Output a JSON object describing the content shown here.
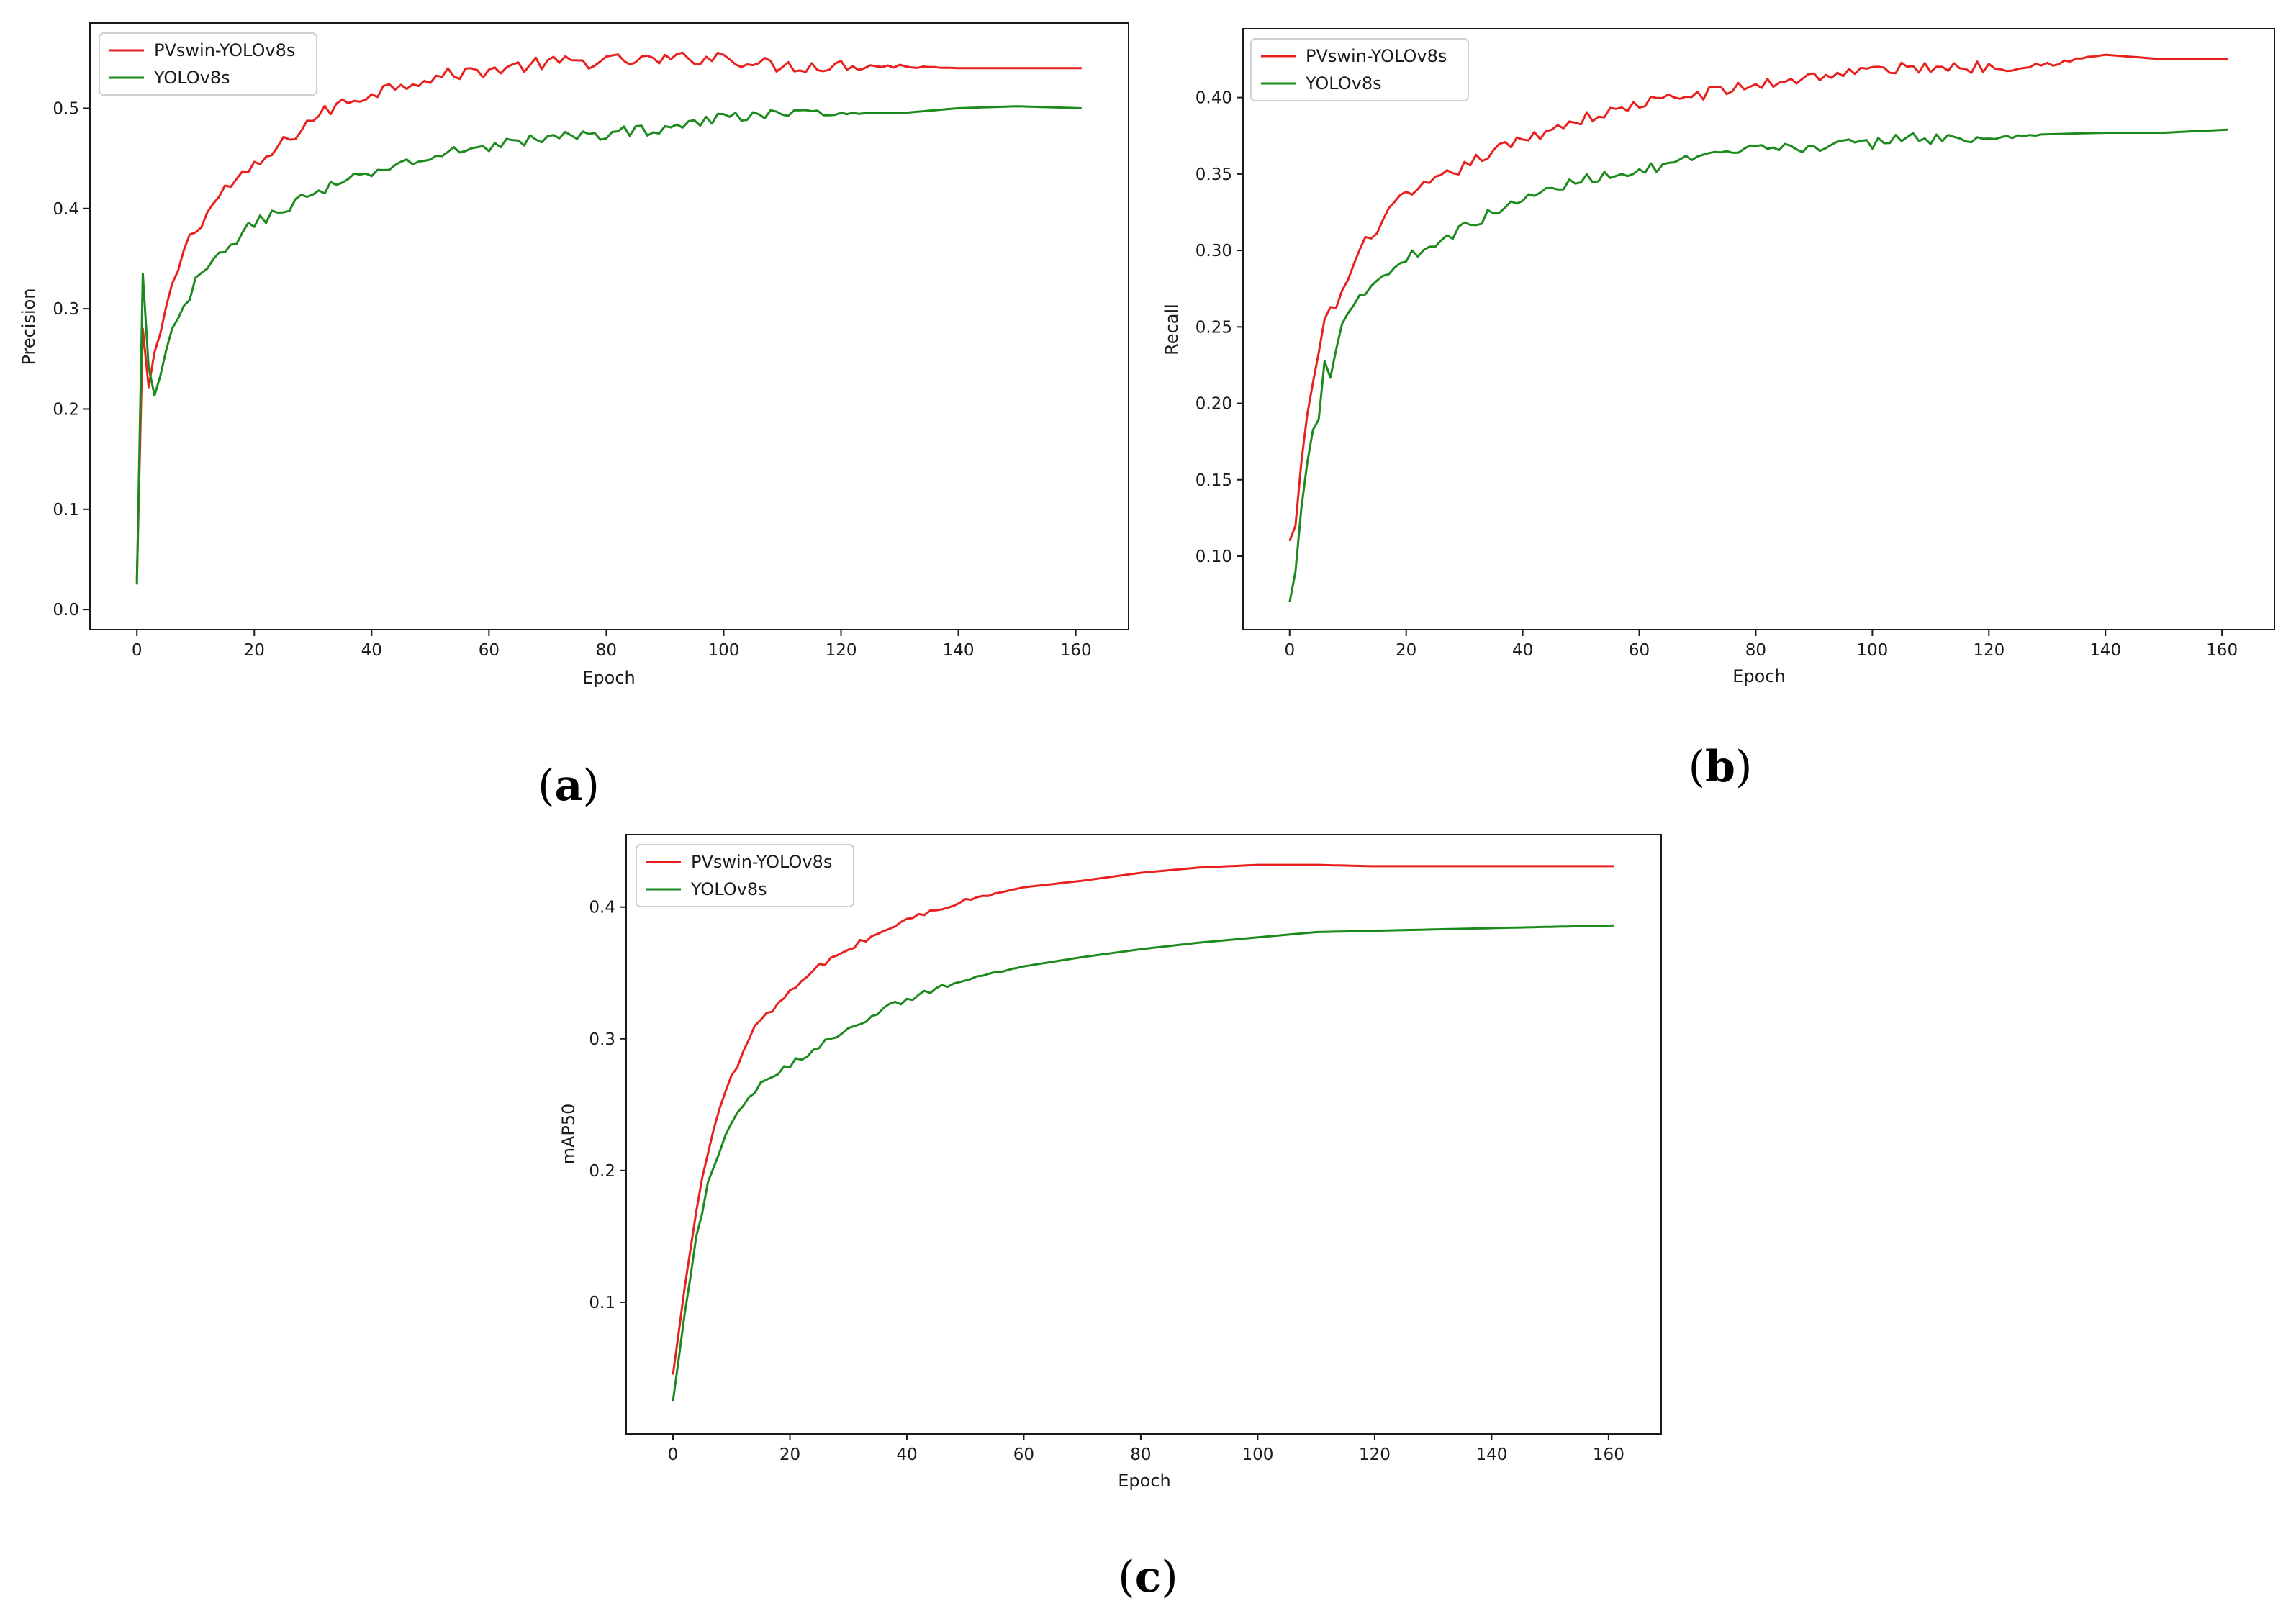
{
  "chart_data": [
    {
      "id": "a",
      "type": "line",
      "caption": "(a)",
      "caption_letter": "a",
      "title": "",
      "xlabel": "Epoch",
      "ylabel": "Precision",
      "xlim": [
        -8,
        169
      ],
      "ylim": [
        -0.02,
        0.585
      ],
      "xticks": [
        0,
        20,
        40,
        60,
        80,
        100,
        120,
        140,
        160
      ],
      "yticks": [
        0.0,
        0.1,
        0.2,
        0.3,
        0.4,
        0.5
      ],
      "ytick_decimals": 1,
      "legend": "top-left",
      "series": [
        {
          "name": "PVswin-YOLOv8s",
          "color": "#e8211f",
          "keypoints": [
            [
              0,
              0.03
            ],
            [
              1,
              0.28
            ],
            [
              2,
              0.22
            ],
            [
              3,
              0.25
            ],
            [
              5,
              0.3
            ],
            [
              8,
              0.36
            ],
            [
              10,
              0.38
            ],
            [
              15,
              0.42
            ],
            [
              20,
              0.44
            ],
            [
              25,
              0.465
            ],
            [
              30,
              0.49
            ],
            [
              35,
              0.505
            ],
            [
              40,
              0.515
            ],
            [
              45,
              0.525
            ],
            [
              50,
              0.53
            ],
            [
              55,
              0.535
            ],
            [
              60,
              0.538
            ],
            [
              70,
              0.545
            ],
            [
              80,
              0.547
            ],
            [
              90,
              0.548
            ],
            [
              100,
              0.552
            ],
            [
              105,
              0.545
            ],
            [
              110,
              0.542
            ],
            [
              120,
              0.543
            ],
            [
              130,
              0.542
            ],
            [
              140,
              0.54
            ],
            [
              150,
              0.54
            ],
            [
              161,
              0.54
            ]
          ],
          "noise": 0.007,
          "noise_until": 138
        },
        {
          "name": "YOLOv8s",
          "color": "#1d8a1d",
          "keypoints": [
            [
              0,
              0.025
            ],
            [
              1,
              0.335
            ],
            [
              2,
              0.24
            ],
            [
              3,
              0.21
            ],
            [
              4,
              0.23
            ],
            [
              6,
              0.28
            ],
            [
              8,
              0.3
            ],
            [
              10,
              0.325
            ],
            [
              15,
              0.36
            ],
            [
              20,
              0.385
            ],
            [
              25,
              0.4
            ],
            [
              30,
              0.415
            ],
            [
              35,
              0.425
            ],
            [
              40,
              0.435
            ],
            [
              45,
              0.445
            ],
            [
              50,
              0.45
            ],
            [
              55,
              0.458
            ],
            [
              60,
              0.463
            ],
            [
              70,
              0.47
            ],
            [
              80,
              0.475
            ],
            [
              90,
              0.48
            ],
            [
              100,
              0.49
            ],
            [
              105,
              0.495
            ],
            [
              110,
              0.495
            ],
            [
              120,
              0.495
            ],
            [
              130,
              0.495
            ],
            [
              140,
              0.5
            ],
            [
              150,
              0.502
            ],
            [
              161,
              0.5
            ]
          ],
          "noise": 0.006,
          "noise_until": 125
        }
      ]
    },
    {
      "id": "b",
      "type": "line",
      "caption": "(b)",
      "caption_letter": "b",
      "title": "",
      "xlabel": "Epoch",
      "ylabel": "Recall",
      "xlim": [
        -8,
        169
      ],
      "ylim": [
        0.052,
        0.445
      ],
      "xticks": [
        0,
        20,
        40,
        60,
        80,
        100,
        120,
        140,
        160
      ],
      "yticks": [
        0.1,
        0.15,
        0.2,
        0.25,
        0.3,
        0.35,
        0.4
      ],
      "ytick_decimals": 2,
      "legend": "top-left",
      "series": [
        {
          "name": "PVswin-YOLOv8s",
          "color": "#e8211f",
          "keypoints": [
            [
              0,
              0.11
            ],
            [
              1,
              0.12
            ],
            [
              2,
              0.16
            ],
            [
              3,
              0.19
            ],
            [
              4,
              0.21
            ],
            [
              5,
              0.235
            ],
            [
              6,
              0.255
            ],
            [
              8,
              0.265
            ],
            [
              10,
              0.28
            ],
            [
              12,
              0.3
            ],
            [
              15,
              0.315
            ],
            [
              18,
              0.33
            ],
            [
              20,
              0.335
            ],
            [
              25,
              0.345
            ],
            [
              30,
              0.355
            ],
            [
              35,
              0.365
            ],
            [
              40,
              0.372
            ],
            [
              45,
              0.38
            ],
            [
              50,
              0.386
            ],
            [
              55,
              0.39
            ],
            [
              60,
              0.396
            ],
            [
              70,
              0.402
            ],
            [
              80,
              0.408
            ],
            [
              90,
              0.414
            ],
            [
              100,
              0.418
            ],
            [
              110,
              0.42
            ],
            [
              120,
              0.42
            ],
            [
              130,
              0.422
            ],
            [
              140,
              0.428
            ],
            [
              150,
              0.425
            ],
            [
              161,
              0.425
            ]
          ],
          "noise": 0.004,
          "noise_until": 140
        },
        {
          "name": "YOLOv8s",
          "color": "#1d8a1d",
          "keypoints": [
            [
              0,
              0.07
            ],
            [
              1,
              0.09
            ],
            [
              2,
              0.13
            ],
            [
              3,
              0.16
            ],
            [
              4,
              0.185
            ],
            [
              5,
              0.19
            ],
            [
              6,
              0.23
            ],
            [
              7,
              0.22
            ],
            [
              8,
              0.235
            ],
            [
              9,
              0.255
            ],
            [
              10,
              0.26
            ],
            [
              12,
              0.27
            ],
            [
              15,
              0.28
            ],
            [
              20,
              0.295
            ],
            [
              25,
              0.305
            ],
            [
              30,
              0.315
            ],
            [
              35,
              0.325
            ],
            [
              40,
              0.333
            ],
            [
              45,
              0.34
            ],
            [
              50,
              0.346
            ],
            [
              55,
              0.35
            ],
            [
              60,
              0.352
            ],
            [
              70,
              0.36
            ],
            [
              80,
              0.366
            ],
            [
              90,
              0.368
            ],
            [
              100,
              0.37
            ],
            [
              107,
              0.375
            ],
            [
              110,
              0.373
            ],
            [
              120,
              0.373
            ],
            [
              130,
              0.376
            ],
            [
              140,
              0.377
            ],
            [
              150,
              0.377
            ],
            [
              161,
              0.379
            ]
          ],
          "noise": 0.0035,
          "noise_until": 130
        }
      ]
    },
    {
      "id": "c",
      "type": "line",
      "caption": "(c)",
      "caption_letter": "c",
      "title": "",
      "xlabel": "Epoch",
      "ylabel": "mAP50",
      "xlim": [
        -8,
        169
      ],
      "ylim": [
        0.0,
        0.455
      ],
      "xticks": [
        0,
        20,
        40,
        60,
        80,
        100,
        120,
        140,
        160
      ],
      "yticks": [
        0.1,
        0.2,
        0.3,
        0.4
      ],
      "ytick_decimals": 1,
      "legend": "top-left",
      "series": [
        {
          "name": "PVswin-YOLOv8s",
          "color": "#e8211f",
          "keypoints": [
            [
              0,
              0.045
            ],
            [
              2,
              0.11
            ],
            [
              4,
              0.17
            ],
            [
              6,
              0.215
            ],
            [
              8,
              0.25
            ],
            [
              10,
              0.27
            ],
            [
              13,
              0.3
            ],
            [
              15,
              0.315
            ],
            [
              20,
              0.335
            ],
            [
              25,
              0.355
            ],
            [
              30,
              0.368
            ],
            [
              35,
              0.38
            ],
            [
              40,
              0.39
            ],
            [
              45,
              0.398
            ],
            [
              50,
              0.405
            ],
            [
              55,
              0.41
            ],
            [
              60,
              0.415
            ],
            [
              70,
              0.42
            ],
            [
              80,
              0.426
            ],
            [
              90,
              0.43
            ],
            [
              100,
              0.432
            ],
            [
              110,
              0.432
            ],
            [
              120,
              0.431
            ],
            [
              130,
              0.431
            ],
            [
              140,
              0.431
            ],
            [
              150,
              0.431
            ],
            [
              161,
              0.431
            ]
          ],
          "noise": 0.0025,
          "noise_until": 60
        },
        {
          "name": "YOLOv8s",
          "color": "#1d8a1d",
          "keypoints": [
            [
              0,
              0.025
            ],
            [
              2,
              0.09
            ],
            [
              4,
              0.15
            ],
            [
              6,
              0.19
            ],
            [
              8,
              0.215
            ],
            [
              10,
              0.235
            ],
            [
              13,
              0.255
            ],
            [
              15,
              0.265
            ],
            [
              20,
              0.28
            ],
            [
              25,
              0.295
            ],
            [
              30,
              0.308
            ],
            [
              35,
              0.32
            ],
            [
              40,
              0.33
            ],
            [
              45,
              0.338
            ],
            [
              50,
              0.345
            ],
            [
              55,
              0.35
            ],
            [
              60,
              0.355
            ],
            [
              70,
              0.362
            ],
            [
              80,
              0.368
            ],
            [
              90,
              0.373
            ],
            [
              100,
              0.377
            ],
            [
              110,
              0.381
            ],
            [
              120,
              0.382
            ],
            [
              130,
              0.383
            ],
            [
              140,
              0.384
            ],
            [
              150,
              0.385
            ],
            [
              161,
              0.386
            ]
          ],
          "noise": 0.0025,
          "noise_until": 60
        }
      ]
    }
  ]
}
